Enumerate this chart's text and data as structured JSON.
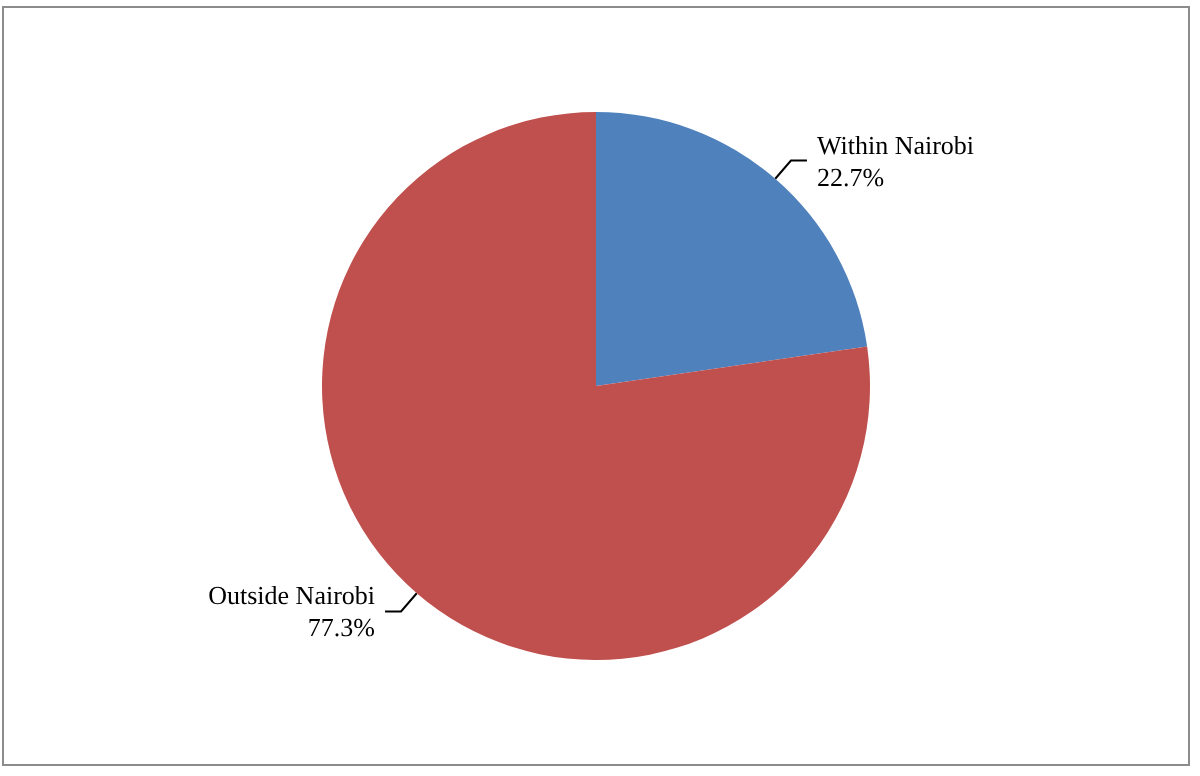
{
  "chart_data": {
    "type": "pie",
    "categories": [
      "Within Nairobi",
      "Outside Nairobi"
    ],
    "values": [
      22.7,
      77.3
    ],
    "colors": [
      "#4f81bd",
      "#c0504d"
    ],
    "value_labels": [
      "22.7%",
      "77.3%"
    ],
    "legend": false
  }
}
